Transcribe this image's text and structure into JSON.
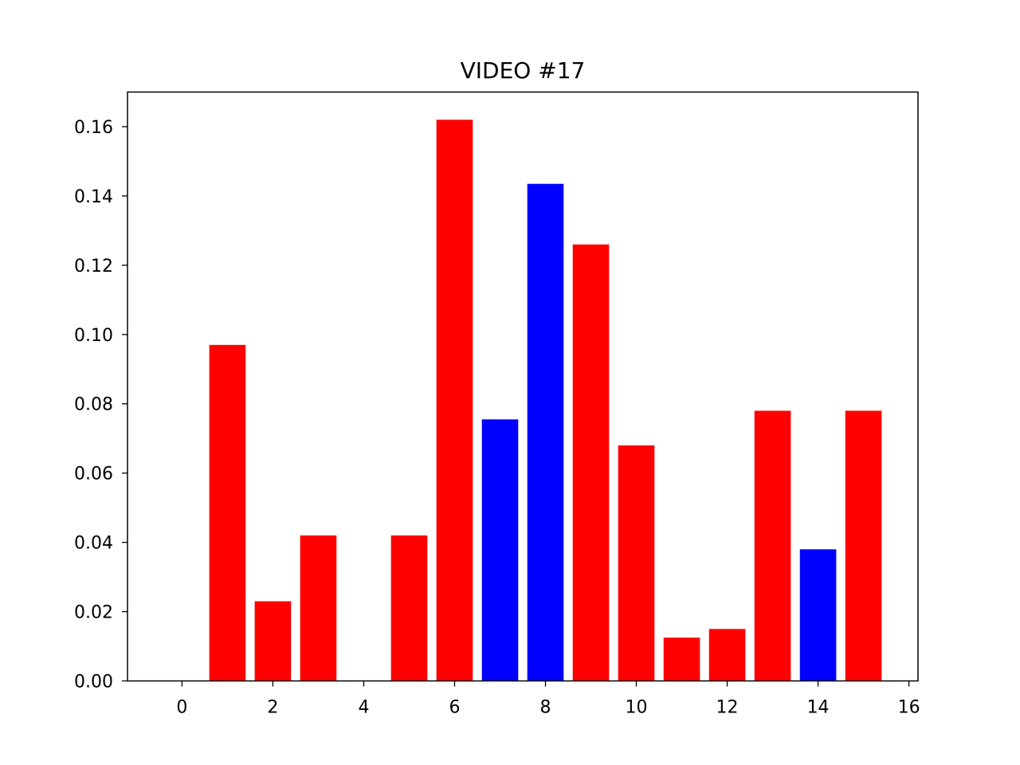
{
  "chart_data": {
    "type": "bar",
    "title": "VIDEO #17",
    "xlabel": "",
    "ylabel": "",
    "x": [
      0,
      1,
      2,
      3,
      4,
      5,
      6,
      7,
      8,
      9,
      10,
      11,
      12,
      13,
      14,
      15
    ],
    "values": [
      0.0,
      0.097,
      0.023,
      0.042,
      0.0,
      0.042,
      0.162,
      0.0755,
      0.1435,
      0.126,
      0.068,
      0.0125,
      0.015,
      0.078,
      0.038,
      0.078
    ],
    "bar_colors": [
      "#ff0000",
      "#ff0000",
      "#ff0000",
      "#ff0000",
      "#ff0000",
      "#ff0000",
      "#ff0000",
      "#0000ff",
      "#0000ff",
      "#ff0000",
      "#ff0000",
      "#ff0000",
      "#ff0000",
      "#ff0000",
      "#0000ff",
      "#ff0000"
    ],
    "xlim": [
      -1.2,
      16.2
    ],
    "ylim": [
      0,
      0.17
    ],
    "x_ticks": [
      0,
      2,
      4,
      6,
      8,
      10,
      12,
      14,
      16
    ],
    "x_tick_labels": [
      "0",
      "2",
      "4",
      "6",
      "8",
      "10",
      "12",
      "14",
      "16"
    ],
    "y_ticks": [
      0,
      0.02,
      0.04,
      0.06,
      0.08,
      0.1,
      0.12,
      0.14,
      0.16
    ],
    "y_tick_labels": [
      "0.00",
      "0.02",
      "0.04",
      "0.06",
      "0.08",
      "0.10",
      "0.12",
      "0.14",
      "0.16"
    ],
    "grid": false,
    "legend": "none"
  }
}
